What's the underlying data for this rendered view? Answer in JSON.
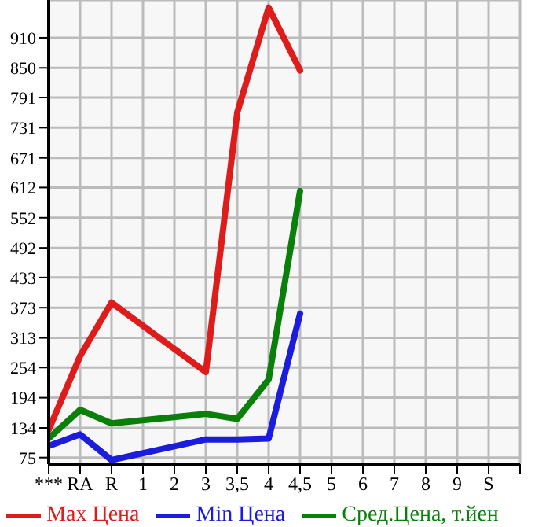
{
  "chart_data": {
    "type": "line",
    "categories": [
      "***",
      "RA",
      "R",
      "1",
      "2",
      "3",
      "3,5",
      "4",
      "4,5",
      "5",
      "6",
      "7",
      "8",
      "9",
      "S",
      null
    ],
    "series": [
      {
        "name": "Max Цена",
        "color": "#dd1c1c",
        "values": [
          130,
          277,
          383,
          null,
          null,
          245,
          761,
          970,
          845,
          null,
          null,
          null,
          null,
          null,
          null,
          null
        ]
      },
      {
        "name": "Min Цена",
        "color": "#1c1cdd",
        "values": [
          98,
          121,
          70,
          null,
          null,
          111,
          111,
          113,
          361,
          null,
          null,
          null,
          null,
          null,
          null,
          null
        ]
      },
      {
        "name": "Сред.Цена, т.йен",
        "color": "#0a800a",
        "values": [
          113,
          170,
          143,
          null,
          null,
          162,
          152,
          230,
          605,
          null,
          null,
          null,
          null,
          null,
          null,
          null
        ]
      }
    ],
    "ylim": [
      62,
      985
    ],
    "yticks": [
      75,
      134,
      194,
      254,
      313,
      373,
      433,
      492,
      552,
      612,
      671,
      731,
      791,
      850,
      910
    ],
    "grid": true,
    "legend": "bottom",
    "marker": "none",
    "line_style": "solid"
  }
}
